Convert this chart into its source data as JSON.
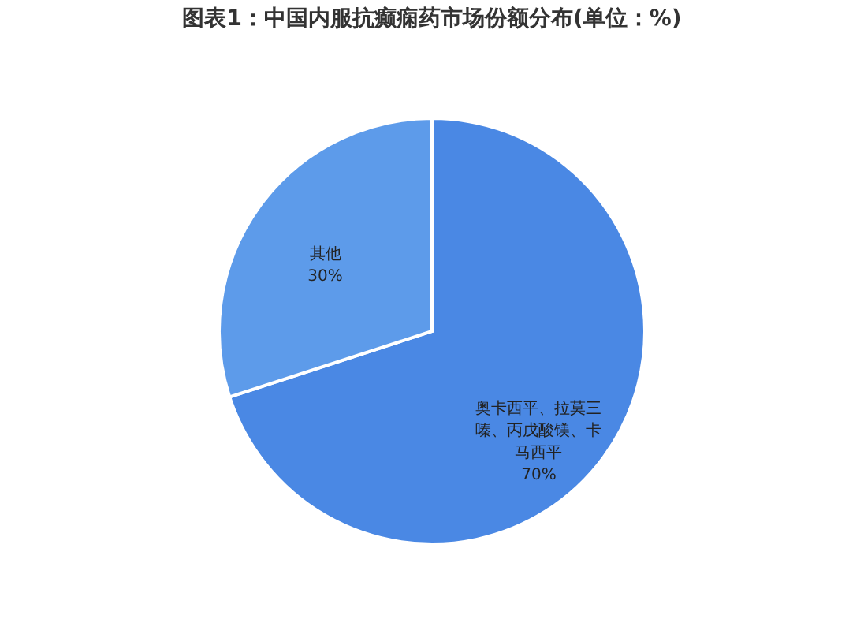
{
  "chart_data": {
    "type": "pie",
    "title": "图表1：中国内服抗癫痫药市场份额分布(单位：%)",
    "categories": [
      "奥卡西平、拉莫三嗪、丙戊酸镁、卡马西平",
      "其他"
    ],
    "values": [
      70,
      30
    ],
    "colors": [
      "#4a88e4",
      "#5d9bea"
    ],
    "value_labels": [
      "70%",
      "30%"
    ],
    "legend": false
  }
}
